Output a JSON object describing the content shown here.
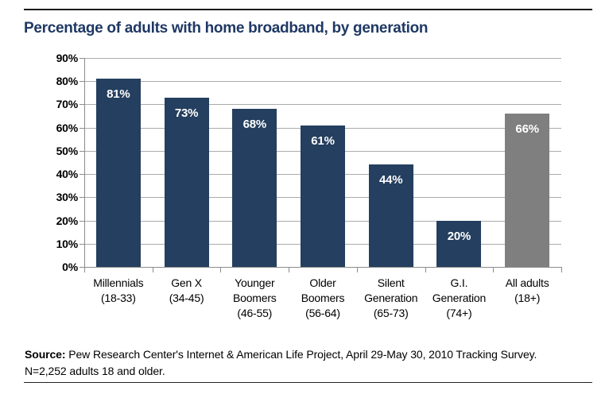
{
  "page": {
    "title": "Percentage of adults with home broadband, by generation",
    "source_label": "Source:",
    "source_text": " Pew Research Center's Internet & American Life Project, April 29-May 30, 2010 Tracking Survey. N=2,252 adults 18 and older."
  },
  "colors": {
    "title": "#1F3864",
    "bar_primary": "#243F5F",
    "bar_highlight": "#7F7F7F",
    "gridline": "#ABABAB",
    "axis": "#8C8C8C",
    "value_label": "#FFFFFF",
    "rule": "#1A1A1A"
  },
  "chart_data": {
    "type": "bar",
    "title": "Percentage of adults with home broadband, by generation",
    "categories": [
      "Millennials (18-33)",
      "Gen X (34-45)",
      "Younger Boomers (46-55)",
      "Older Boomers (56-64)",
      "Silent Generation (65-73)",
      "G.I. Generation (74+)",
      "All adults (18+)"
    ],
    "category_lines": [
      [
        "Millennials",
        "(18-33)"
      ],
      [
        "Gen X",
        "(34-45)"
      ],
      [
        "Younger",
        "Boomers",
        "(46-55)"
      ],
      [
        "Older",
        "Boomers",
        "(56-64)"
      ],
      [
        "Silent",
        "Generation",
        "(65-73)"
      ],
      [
        "G.I.",
        "Generation",
        "(74+)"
      ],
      [
        "All adults",
        "(18+)"
      ]
    ],
    "values": [
      81,
      73,
      68,
      61,
      44,
      20,
      66
    ],
    "value_labels": [
      "81%",
      "73%",
      "68%",
      "61%",
      "44%",
      "20%",
      "66%"
    ],
    "bar_colors": [
      "#243F5F",
      "#243F5F",
      "#243F5F",
      "#243F5F",
      "#243F5F",
      "#243F5F",
      "#7F7F7F"
    ],
    "ylim": [
      0,
      90
    ],
    "ytick_step": 10,
    "ytick_labels": [
      "0%",
      "10%",
      "20%",
      "30%",
      "40%",
      "50%",
      "60%",
      "70%",
      "80%",
      "90%"
    ],
    "xlabel": "",
    "ylabel": "",
    "grid": true,
    "legend": null
  }
}
